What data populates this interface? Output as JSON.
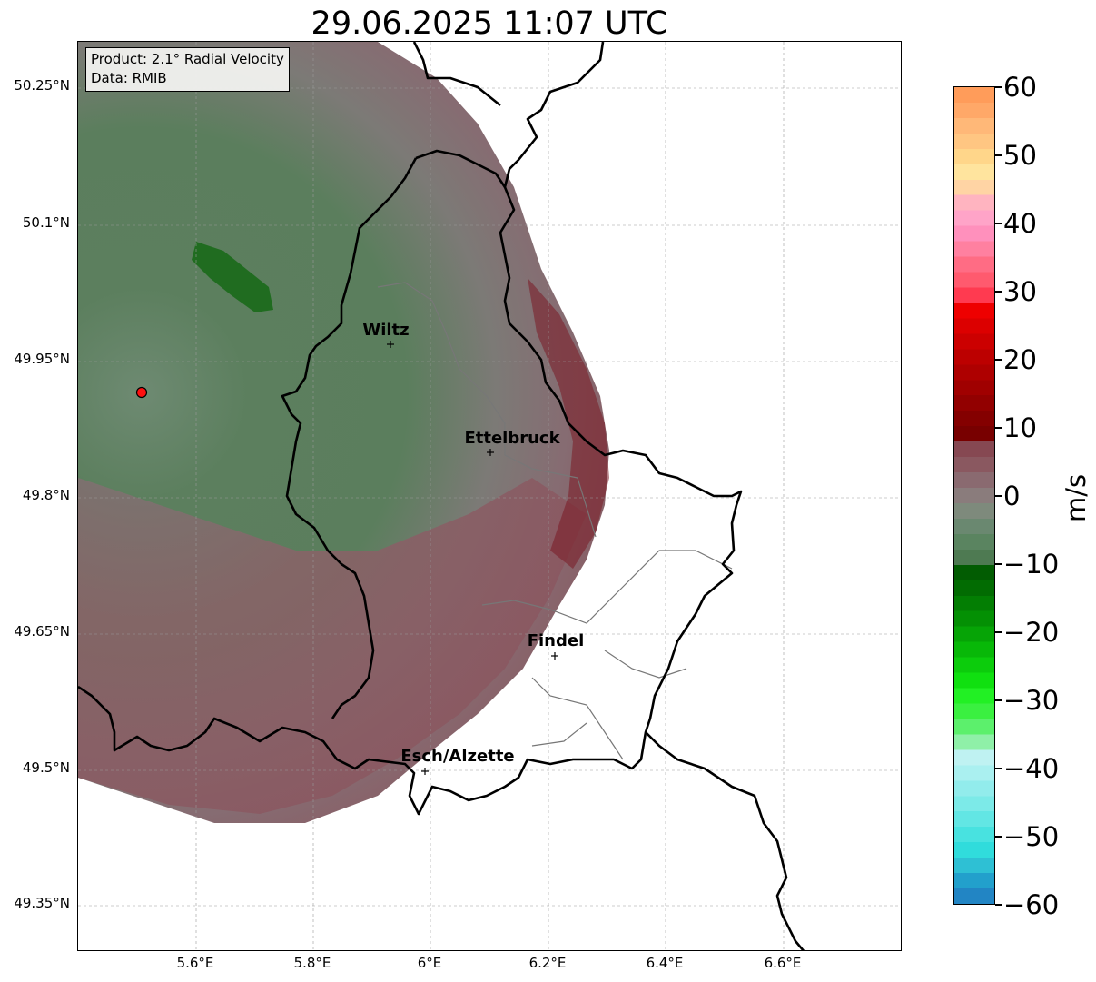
{
  "title": "29.06.2025 11:07 UTC",
  "info": {
    "product": "Product: 2.1° Radial Velocity",
    "data": "Data: RMIB"
  },
  "axes": {
    "lat_ticks": [
      "50.25°N",
      "50.1°N",
      "49.95°N",
      "49.8°N",
      "49.65°N",
      "49.5°N",
      "49.35°N"
    ],
    "lon_ticks": [
      "5.6°E",
      "5.8°E",
      "6°E",
      "6.2°E",
      "6.4°E",
      "6.6°E"
    ]
  },
  "cities": [
    {
      "name": "Wiltz"
    },
    {
      "name": "Ettelbruck"
    },
    {
      "name": "Findel"
    },
    {
      "name": "Esch/Alzette"
    }
  ],
  "colorbar": {
    "label": "m/s",
    "ticks": [
      "60",
      "50",
      "40",
      "30",
      "20",
      "10",
      "0",
      "−10",
      "−20",
      "−30",
      "−40",
      "−50",
      "−60"
    ],
    "min": -60,
    "max": 60,
    "colors": [
      "#2285c4",
      "#22a0cc",
      "#2ec0d4",
      "#30dcdc",
      "#48e2e0",
      "#62e6e4",
      "#7ceae8",
      "#92ecec",
      "#aaf0f0",
      "#bff2f2",
      "#8ff0a8",
      "#5cf06c",
      "#3af040",
      "#22f024",
      "#10e010",
      "#0ccc0c",
      "#08b808",
      "#06a406",
      "#049004",
      "#037e03",
      "#026c02",
      "#025c02",
      "#4e7a52",
      "#5a8460",
      "#6a8870",
      "#7e8a7c",
      "#8a7c7c",
      "#8a6a70",
      "#8a5860",
      "#864852",
      "#780000",
      "#840000",
      "#920000",
      "#a00000",
      "#ae0000",
      "#bc0000",
      "#cc0000",
      "#dc0000",
      "#ee0000",
      "#ff3a50",
      "#ff5a6e",
      "#ff6c84",
      "#ff80a0",
      "#ff90bc",
      "#ffa4c8",
      "#ffb4c0",
      "#ffd4a4",
      "#ffe49e",
      "#ffd68a",
      "#ffc682",
      "#ffb878",
      "#ffa868",
      "#ff9c5a"
    ]
  }
}
